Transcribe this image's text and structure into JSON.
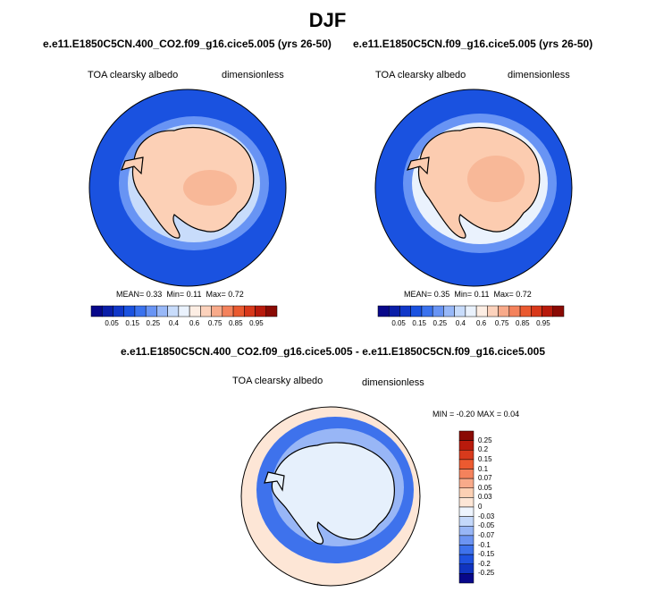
{
  "figure": {
    "title": "DJF",
    "diff_title": "e.e11.E1850C5CN.400_CO2.f09_g16.cice5.005 - e.e11.E1850C5CN.f09_g16.cice5.005"
  },
  "chart_data": [
    {
      "type": "heatmap",
      "subtype": "south-polar stereographic contour map",
      "title": "e.e11.E1850C5CN.400_CO2.f09_g16.cice5.005 (yrs 26-50)",
      "variable": "TOA clearsky albedo",
      "units": "dimensionless",
      "stats": {
        "mean_label": "MEAN=",
        "mean": "0.33",
        "min_label": "Min=",
        "min": "0.11",
        "max_label": "Max=",
        "max": "0.72"
      },
      "colorbar_levels": [
        "0.05",
        "0.15",
        "0.25",
        "0.4",
        "0.6",
        "0.75",
        "0.85",
        "0.95"
      ],
      "colorbar_orientation": "horizontal"
    },
    {
      "type": "heatmap",
      "subtype": "south-polar stereographic contour map",
      "title": "e.e11.E1850C5CN.f09_g16.cice5.005 (yrs 26-50)",
      "variable": "TOA clearsky albedo",
      "units": "dimensionless",
      "stats": {
        "mean_label": "MEAN=",
        "mean": "0.35",
        "min_label": "Min=",
        "min": "0.11",
        "max_label": "Max=",
        "max": "0.72"
      },
      "colorbar_levels": [
        "0.05",
        "0.15",
        "0.25",
        "0.4",
        "0.6",
        "0.75",
        "0.85",
        "0.95"
      ],
      "colorbar_orientation": "horizontal"
    },
    {
      "type": "heatmap",
      "subtype": "south-polar stereographic difference map",
      "title": "e.e11.E1850C5CN.400_CO2.f09_g16.cice5.005 - e.e11.E1850C5CN.f09_g16.cice5.005",
      "variable": "TOA clearsky albedo",
      "units": "dimensionless",
      "stats": {
        "min_label": "MIN =",
        "min": "-0.20",
        "max_label": "MAX =",
        "max": "0.04"
      },
      "colorbar_levels": [
        "0.25",
        "0.2",
        "0.15",
        "0.1",
        "0.07",
        "0.05",
        "0.03",
        "0",
        "-0.03",
        "-0.05",
        "-0.07",
        "-0.1",
        "-0.15",
        "-0.2",
        "-0.25"
      ],
      "colorbar_orientation": "vertical"
    }
  ],
  "colors": {
    "seq_palette": [
      "#08088a",
      "#0a1ea8",
      "#1037c8",
      "#1a52e0",
      "#3a72ee",
      "#6894f4",
      "#98b8f8",
      "#c8dcfb",
      "#eaf2fd",
      "#fdeee4",
      "#fcd2bc",
      "#f8aa8a",
      "#f4825c",
      "#ea5a30",
      "#d8381a",
      "#b81a0c",
      "#8a0a04"
    ],
    "diff_palette": [
      "#8a0a04",
      "#b81a0c",
      "#d83a1c",
      "#ec5a30",
      "#f4825c",
      "#f8aa8a",
      "#fcd0b4",
      "#fde6d6",
      "#eef4fd",
      "#c4d8fa",
      "#98b6f6",
      "#6c94f2",
      "#3e72ec",
      "#1f52e0",
      "#1034c0",
      "#08088a"
    ],
    "ocean_a": "#1a52e0",
    "ocean_b": "#1a52e0",
    "ice_ring": "#6894f4",
    "land_a": "#fcd0b6",
    "land_b": "#fcccb0",
    "land_core": "#f8b898",
    "diff_ocean": "#fde6d6",
    "diff_ring": "#3e72ec",
    "diff_ring_light": "#98b6f6",
    "diff_land": "#e6f0fc"
  }
}
